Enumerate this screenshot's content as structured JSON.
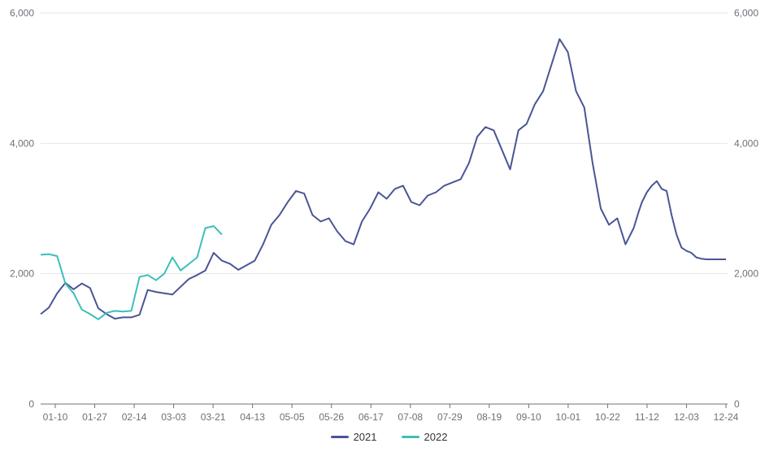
{
  "chart_data": {
    "type": "line",
    "x_ticks": [
      "01-10",
      "01-27",
      "02-14",
      "03-03",
      "03-21",
      "04-13",
      "05-05",
      "05-26",
      "06-17",
      "07-08",
      "07-29",
      "08-19",
      "09-10",
      "10-01",
      "10-22",
      "11-12",
      "12-03",
      "12-24"
    ],
    "ylim": [
      0,
      6000
    ],
    "y_ticks": [
      "0",
      "2,000",
      "4,000",
      "6,000"
    ],
    "y_tick_values": [
      0,
      2000,
      4000,
      6000
    ],
    "grid": true,
    "legend": "bottom-center",
    "series": [
      {
        "name": "2021",
        "color": "#4a5596",
        "x": [
          0,
          5,
          10,
          15,
          20,
          25,
          30,
          35,
          40,
          45,
          50,
          55,
          60,
          65,
          70,
          75,
          80,
          85,
          90,
          95,
          100,
          105,
          110,
          115,
          120,
          125,
          130,
          135,
          140,
          145,
          150,
          155,
          160,
          165,
          170,
          175,
          180,
          185,
          190,
          195,
          200,
          205,
          210,
          215,
          220,
          225,
          230,
          235,
          240,
          245,
          250,
          255,
          260,
          265,
          270,
          275,
          280,
          285,
          290,
          295,
          300,
          305,
          310,
          315,
          320,
          325,
          330,
          335,
          340,
          345,
          350,
          355,
          360,
          363
        ],
        "values": [
          1380,
          1480,
          1700,
          1860,
          1760,
          1850,
          1780,
          1470,
          1380,
          1310,
          1330,
          1330,
          1370,
          1750,
          1720,
          1700,
          1680,
          1800,
          1920,
          1980,
          2050,
          2320,
          2200,
          2150,
          2060,
          2130,
          2200,
          2450,
          2750,
          2900,
          3100,
          3270,
          3230,
          2900,
          2800,
          2850,
          2650,
          2500,
          2450,
          2800,
          3000,
          3250,
          3150,
          3300,
          3350,
          3100,
          3050,
          3200,
          3250,
          3350,
          3400,
          3450,
          3700,
          4100,
          4250,
          4200,
          3900,
          3600,
          4200,
          4300,
          4600,
          4800,
          5200,
          5600,
          5400,
          4800,
          4550,
          3700,
          3000,
          2750,
          2850,
          2450,
          2700,
          2950
        ],
        "extra_x": [
          365,
          368,
          371,
          374,
          377,
          380,
          383,
          386,
          389,
          392,
          395,
          398,
          401,
          404,
          407,
          410,
          413,
          416
        ],
        "extra_values": [
          3100,
          3250,
          3350,
          3420,
          3300,
          3270,
          2900,
          2600,
          2400,
          2350,
          2320,
          2250,
          2230,
          2220,
          2220,
          2220,
          2220,
          2220
        ]
      },
      {
        "name": "2022",
        "color": "#3cbfb8",
        "x": [
          0,
          5,
          10,
          15,
          20,
          25,
          30,
          35,
          40,
          45,
          50,
          55,
          60,
          65,
          70,
          75,
          80,
          85,
          90,
          95,
          100,
          105,
          110
        ],
        "values": [
          2290,
          2300,
          2270,
          1850,
          1700,
          1450,
          1380,
          1300,
          1400,
          1430,
          1420,
          1430,
          1950,
          1980,
          1900,
          2000,
          2250,
          2050,
          2150,
          2250,
          2700,
          2730,
          2600
        ]
      }
    ]
  }
}
